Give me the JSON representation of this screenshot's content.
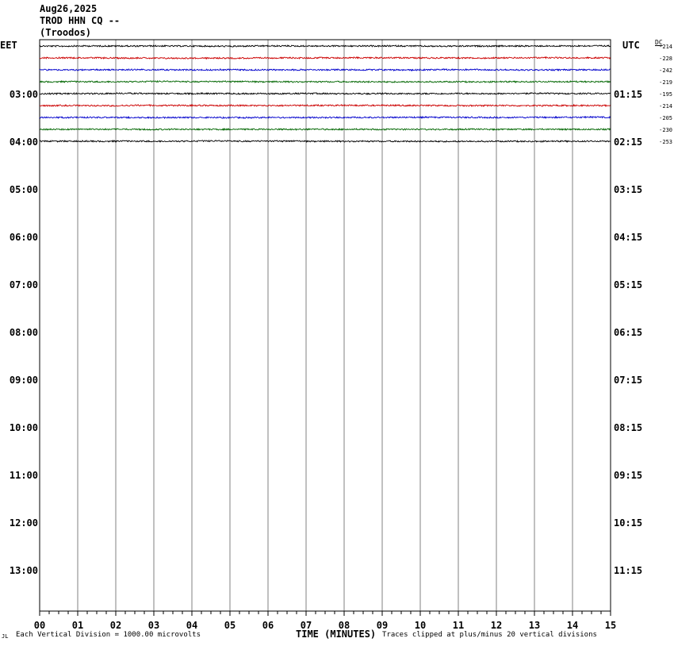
{
  "header": {
    "date": "Aug26,2025",
    "station": "TROD HHN CQ --",
    "location": "(Troodos)"
  },
  "left_tz": "EET",
  "right_tz": "UTC",
  "dc_label": "DC",
  "footer": {
    "corner_mark": "JL",
    "scale_note": "Each Vertical Division = 1000.00 microvolts",
    "xlabel": "TIME (MINUTES)",
    "clip_note": "Traces clipped at plus/minus 20 vertical divisions"
  },
  "colors": {
    "trace_cycle": [
      "#000000",
      "#cc0000",
      "#0000cc",
      "#006600"
    ],
    "grid": "#808080",
    "frame": "#000000"
  },
  "chart_data": {
    "type": "line",
    "title": "",
    "xlabel": "TIME (MINUTES)",
    "ylabel": "",
    "xlim": [
      0,
      15
    ],
    "x_ticks": [
      "00",
      "01",
      "02",
      "03",
      "04",
      "05",
      "06",
      "07",
      "08",
      "09",
      "10",
      "11",
      "12",
      "13",
      "14",
      "15"
    ],
    "row_time_labels_left": [
      "03:00",
      "04:00",
      "05:00",
      "06:00",
      "07:00",
      "08:00",
      "09:00",
      "10:00",
      "11:00",
      "12:00",
      "13:00"
    ],
    "row_time_labels_right": [
      "01:15",
      "02:15",
      "03:15",
      "04:15",
      "05:15",
      "06:15",
      "07:15",
      "08:15",
      "09:15",
      "10:15",
      "11:15"
    ],
    "series": [
      {
        "row": 0,
        "dc_offset": "-214"
      },
      {
        "row": 1,
        "dc_offset": "-228"
      },
      {
        "row": 2,
        "dc_offset": "-242"
      },
      {
        "row": 3,
        "dc_offset": "-219"
      },
      {
        "row": 4,
        "dc_offset": "-195"
      },
      {
        "row": 5,
        "dc_offset": "-214"
      },
      {
        "row": 6,
        "dc_offset": "-205"
      },
      {
        "row": 7,
        "dc_offset": "-230"
      },
      {
        "row": 8,
        "dc_offset": "-253"
      }
    ],
    "grid": true
  }
}
